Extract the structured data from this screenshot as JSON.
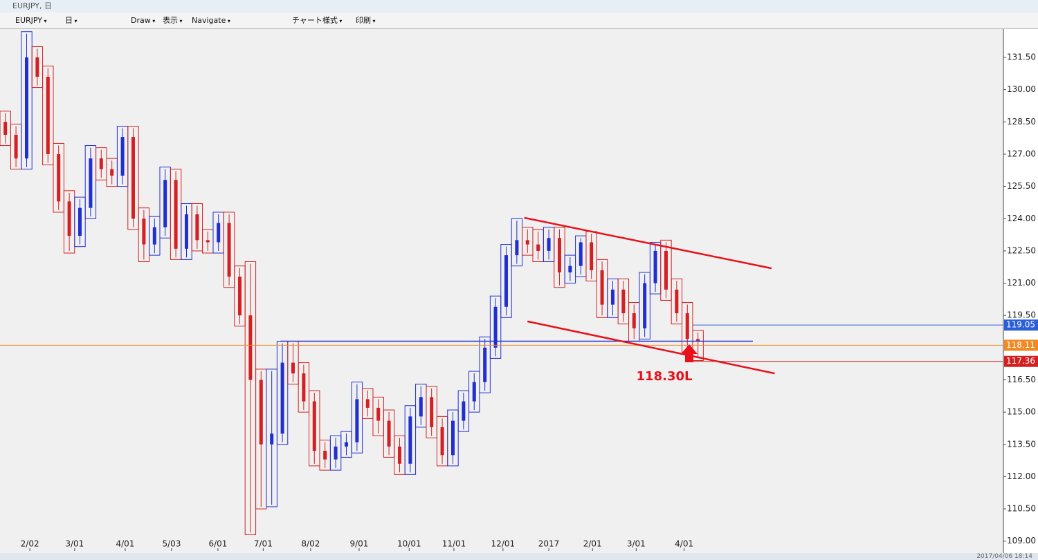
{
  "window": {
    "title": "EURJPY, 日"
  },
  "toolbar": {
    "symbol": "EURJPY",
    "period": "日",
    "draw": "Draw",
    "view": "表示",
    "navigate": "Navigate",
    "style": "チャート様式",
    "print": "印刷"
  },
  "status": "2017/04/06 18:14",
  "chart_data": {
    "type": "candlestick",
    "up_color": "#1f2fd0",
    "down_color": "#d42020",
    "xlim": [
      0,
      94.16
    ],
    "xticks": [
      {
        "value": 2.8,
        "label": "2/02"
      },
      {
        "value": 7.0,
        "label": "3/01"
      },
      {
        "value": 11.75,
        "label": "4/01"
      },
      {
        "value": 16.1,
        "label": "5/03"
      },
      {
        "value": 20.45,
        "label": "6/01"
      },
      {
        "value": 24.7,
        "label": "7/01"
      },
      {
        "value": 29.15,
        "label": "8/02"
      },
      {
        "value": 33.7,
        "label": "9/01"
      },
      {
        "value": 38.4,
        "label": "10/01"
      },
      {
        "value": 42.6,
        "label": "11/01"
      },
      {
        "value": 47.2,
        "label": "12/01"
      },
      {
        "value": 51.5,
        "label": "2017"
      },
      {
        "value": 55.6,
        "label": "2/01"
      },
      {
        "value": 59.7,
        "label": "3/01"
      },
      {
        "value": 64.2,
        "label": "4/01"
      }
    ],
    "ylim": [
      108.54,
      132.82
    ],
    "yticks": [
      {
        "value": 131.5,
        "label": "131.50"
      },
      {
        "value": 130,
        "label": "130.00"
      },
      {
        "value": 128.5,
        "label": "128.50"
      },
      {
        "value": 127,
        "label": "127.00"
      },
      {
        "value": 125.5,
        "label": "125.50"
      },
      {
        "value": 124,
        "label": "124.00"
      },
      {
        "value": 122.5,
        "label": "122.50"
      },
      {
        "value": 121,
        "label": "121.00"
      },
      {
        "value": 119.5,
        "label": "119.50"
      },
      {
        "value": 116.5,
        "label": "116.50"
      },
      {
        "value": 115,
        "label": "115.00"
      },
      {
        "value": 113.5,
        "label": "113.50"
      },
      {
        "value": 112,
        "label": "112.00"
      },
      {
        "value": 110.5,
        "label": "110.50"
      },
      {
        "value": 109,
        "label": "109.00"
      }
    ],
    "open": [
      128.5,
      127.9,
      126.8,
      131.5,
      130.6,
      127.0,
      124.8,
      123.2,
      124.5,
      126.8,
      126.3,
      126.0,
      127.8,
      124.0,
      122.8,
      123.6,
      125.8,
      122.6,
      124.2,
      123.0,
      122.9,
      123.8,
      121.3,
      119.5,
      116.5,
      113.5,
      114.0,
      117.3,
      116.8,
      115.5,
      113.2,
      112.8,
      113.4,
      113.6,
      115.6,
      115.2,
      114.6,
      113.4,
      112.6,
      114.8,
      115.7,
      114.3,
      113.0,
      114.6,
      115.5,
      116.4,
      118.0,
      119.9,
      122.3,
      123.0,
      122.8,
      122.5,
      123.1,
      121.5,
      121.8,
      122.9,
      121.6,
      120.0,
      120.7,
      119.6,
      118.9,
      121.0,
      122.5,
      120.7,
      119.6,
      118.4
    ],
    "high": [
      129.0,
      128.4,
      132.7,
      132.0,
      131.1,
      127.5,
      125.3,
      125.0,
      127.4,
      127.3,
      126.8,
      128.3,
      128.3,
      124.5,
      124.1,
      126.4,
      126.3,
      124.7,
      124.7,
      123.5,
      124.3,
      124.3,
      121.8,
      122.0,
      117.0,
      117.0,
      118.3,
      118.3,
      117.3,
      116.0,
      113.7,
      113.9,
      114.1,
      116.4,
      116.1,
      115.7,
      115.1,
      113.9,
      115.3,
      116.3,
      116.2,
      114.8,
      115.1,
      116.0,
      116.9,
      118.5,
      120.4,
      122.8,
      124.0,
      123.6,
      123.5,
      123.6,
      123.6,
      122.3,
      123.2,
      123.4,
      122.1,
      121.2,
      121.2,
      120.1,
      121.5,
      122.9,
      123.0,
      121.2,
      120.1,
      118.8
    ],
    "low": [
      127.4,
      126.3,
      126.3,
      130.1,
      126.5,
      124.3,
      122.4,
      122.7,
      124.0,
      125.8,
      125.5,
      125.5,
      123.5,
      122.0,
      122.3,
      123.1,
      122.1,
      122.1,
      122.5,
      122.4,
      122.4,
      120.8,
      119.0,
      109.3,
      110.5,
      110.6,
      113.5,
      116.3,
      115.0,
      112.5,
      112.3,
      112.3,
      112.9,
      113.1,
      114.7,
      113.9,
      112.9,
      112.1,
      112.1,
      114.3,
      113.8,
      112.5,
      112.5,
      114.1,
      115.0,
      115.9,
      117.5,
      119.4,
      121.8,
      122.3,
      122.0,
      122.0,
      120.8,
      121.0,
      121.3,
      121.1,
      119.4,
      119.4,
      119.1,
      118.3,
      118.4,
      120.5,
      120.2,
      119.1,
      117.8,
      117.4
    ],
    "close": [
      127.9,
      126.8,
      131.5,
      130.6,
      127.0,
      124.8,
      123.2,
      124.5,
      126.8,
      126.3,
      126.0,
      127.8,
      124.0,
      122.8,
      123.6,
      125.8,
      122.6,
      124.2,
      123.0,
      122.9,
      123.8,
      121.3,
      119.5,
      116.5,
      113.5,
      114.0,
      117.3,
      116.8,
      115.5,
      113.2,
      112.8,
      113.4,
      113.6,
      115.6,
      115.2,
      114.6,
      113.4,
      112.6,
      114.8,
      115.7,
      114.3,
      113.0,
      114.6,
      115.5,
      116.4,
      118.0,
      119.9,
      122.3,
      123.0,
      122.8,
      122.5,
      123.1,
      121.5,
      121.8,
      122.9,
      121.6,
      120.0,
      120.7,
      119.6,
      118.9,
      121.0,
      122.5,
      120.7,
      119.6,
      118.4,
      118.3
    ],
    "level_line": {
      "value": 118.3,
      "color": "#1f2fd0",
      "x": [
        26.3,
        70.65
      ]
    },
    "price_labels": [
      {
        "value": 119.05,
        "color": "#2b5fd9"
      },
      {
        "value": 118.11,
        "color": "#f08a24"
      },
      {
        "value": 117.36,
        "color": "#d42020"
      }
    ],
    "trendlines": [
      {
        "color": "#e8101a",
        "x": [
          49.2,
          72.4
        ],
        "y": [
          124.04,
          121.69
        ]
      },
      {
        "color": "#e8101a",
        "x": [
          49.5,
          72.7
        ],
        "y": [
          119.22,
          116.8
        ]
      }
    ],
    "annotation": "118.30L"
  }
}
